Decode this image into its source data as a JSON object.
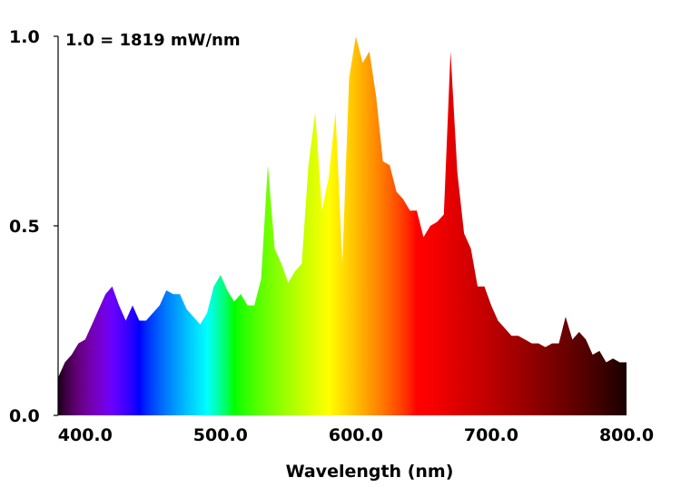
{
  "chart_data": {
    "type": "area",
    "xlabel": "Wavelength (nm)",
    "ylabel": "",
    "annotation": "1.0 = 1819 mW/nm",
    "xlim": [
      380,
      800
    ],
    "ylim": [
      0,
      1.0
    ],
    "x_ticks": [
      {
        "value": 400,
        "label": "400.0"
      },
      {
        "value": 500,
        "label": "500.0"
      },
      {
        "value": 600,
        "label": "600.0"
      },
      {
        "value": 700,
        "label": "700.0"
      },
      {
        "value": 800,
        "label": "800.0"
      }
    ],
    "y_ticks": [
      {
        "value": 0.0,
        "label": "0.0"
      },
      {
        "value": 0.5,
        "label": "0.5"
      },
      {
        "value": 1.0,
        "label": "1.0"
      }
    ],
    "fill": "wavelength-spectrum-gradient",
    "x": [
      380,
      385,
      390,
      395,
      400,
      405,
      410,
      415,
      420,
      425,
      430,
      435,
      440,
      445,
      450,
      455,
      460,
      465,
      470,
      475,
      480,
      485,
      490,
      495,
      500,
      505,
      510,
      515,
      520,
      525,
      530,
      535,
      540,
      545,
      550,
      555,
      560,
      565,
      570,
      575,
      580,
      585,
      590,
      595,
      600,
      605,
      610,
      615,
      620,
      625,
      630,
      635,
      640,
      645,
      650,
      655,
      660,
      665,
      670,
      675,
      680,
      685,
      690,
      695,
      700,
      705,
      710,
      715,
      720,
      725,
      730,
      735,
      740,
      745,
      750,
      755,
      760,
      765,
      770,
      775,
      780,
      785,
      790,
      795,
      800
    ],
    "y": [
      0.1,
      0.14,
      0.16,
      0.19,
      0.2,
      0.24,
      0.28,
      0.32,
      0.34,
      0.29,
      0.25,
      0.29,
      0.25,
      0.25,
      0.27,
      0.29,
      0.33,
      0.32,
      0.32,
      0.28,
      0.26,
      0.24,
      0.27,
      0.34,
      0.37,
      0.33,
      0.3,
      0.32,
      0.29,
      0.29,
      0.36,
      0.66,
      0.44,
      0.4,
      0.35,
      0.38,
      0.4,
      0.66,
      0.8,
      0.54,
      0.63,
      0.8,
      0.4,
      0.89,
      1.0,
      0.93,
      0.96,
      0.84,
      0.67,
      0.66,
      0.59,
      0.57,
      0.54,
      0.54,
      0.47,
      0.5,
      0.51,
      0.53,
      0.96,
      0.64,
      0.48,
      0.44,
      0.34,
      0.34,
      0.29,
      0.25,
      0.23,
      0.21,
      0.21,
      0.2,
      0.19,
      0.19,
      0.18,
      0.19,
      0.19,
      0.26,
      0.2,
      0.22,
      0.2,
      0.16,
      0.17,
      0.14,
      0.15,
      0.14,
      0.14
    ]
  }
}
